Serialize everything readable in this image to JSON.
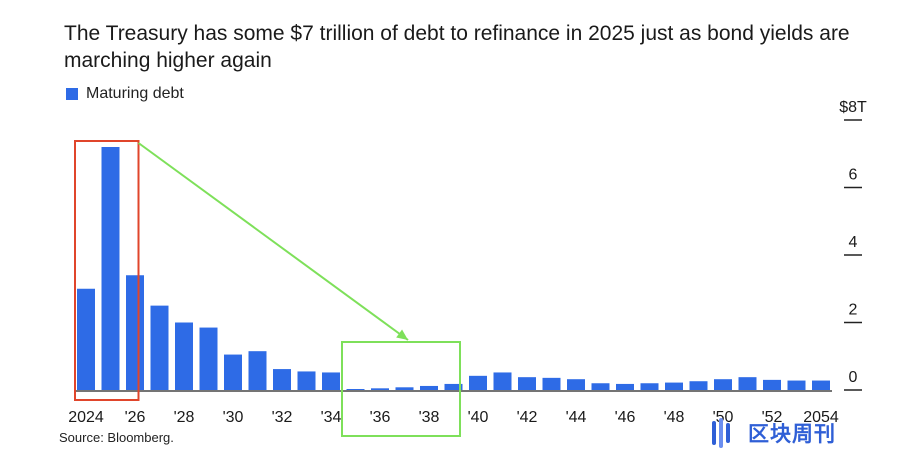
{
  "chart_data": {
    "type": "bar",
    "title": "The Treasury has some $7 trillion of debt to refinance in 2025 just as bond yields are marching higher again",
    "legend": [
      "Maturing debt"
    ],
    "series": [
      {
        "name": "Maturing debt",
        "color": "#2e6be6",
        "values": [
          3.0,
          7.2,
          3.4,
          2.5,
          2.0,
          1.85,
          1.05,
          1.15,
          0.62,
          0.55,
          0.52,
          0.02,
          0.05,
          0.08,
          0.12,
          0.18,
          0.42,
          0.52,
          0.38,
          0.36,
          0.32,
          0.2,
          0.18,
          0.2,
          0.22,
          0.26,
          0.32,
          0.38,
          0.3,
          0.28,
          0.28
        ]
      }
    ],
    "x": [
      "2024",
      "2025",
      "2026",
      "2027",
      "2028",
      "2029",
      "2030",
      "2031",
      "2032",
      "2033",
      "2034",
      "2035",
      "2036",
      "2037",
      "2038",
      "2039",
      "2040",
      "2041",
      "2042",
      "2043",
      "2044",
      "2045",
      "2046",
      "2047",
      "2048",
      "2049",
      "2050",
      "2051",
      "2052",
      "2053",
      "2054"
    ],
    "x_tick_labels": [
      "2024",
      "'26",
      "'28",
      "'30",
      "'32",
      "'34",
      "'36",
      "'38",
      "'40",
      "'42",
      "'44",
      "'46",
      "'48",
      "'50",
      "'52",
      "2054"
    ],
    "y_ticks": [
      {
        "value": 0,
        "label": "0"
      },
      {
        "value": 2,
        "label": "2"
      },
      {
        "value": 4,
        "label": "4"
      },
      {
        "value": 6,
        "label": "6"
      },
      {
        "value": 8,
        "label": "$8T"
      }
    ],
    "ylim": [
      0,
      8
    ],
    "y_axis_side": "right",
    "grid": false,
    "legend_position": "top-left",
    "annotations": [
      {
        "type": "box",
        "color": "#e0452b",
        "around": [
          "2024",
          "2025"
        ]
      },
      {
        "type": "box",
        "color": "#7ee05a",
        "around": [
          "2035",
          "2038"
        ]
      },
      {
        "type": "arrow",
        "color": "#7ee05a",
        "from": "red box",
        "to": "green box"
      }
    ]
  },
  "source": "Source: Bloomberg.",
  "watermark": {
    "text": "区块周刊",
    "color": "#2f5fd6"
  }
}
